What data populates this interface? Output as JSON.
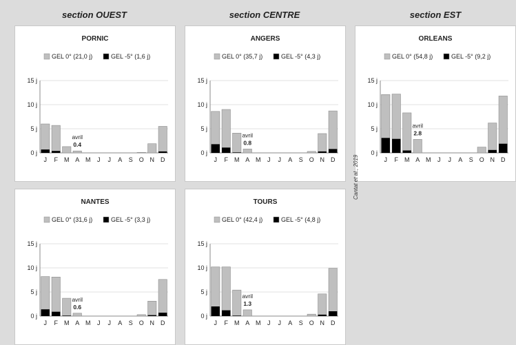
{
  "sections": [
    {
      "label": "section OUEST"
    },
    {
      "label": "section CENTRE"
    },
    {
      "label": "section EST"
    }
  ],
  "credit": "Cantat et al., 2019",
  "colors": {
    "gel0": "#bfbfbf",
    "gel5": "#000000",
    "border": "#8c8c8c"
  },
  "chart_data": [
    {
      "type": "bar",
      "stacked": true,
      "title": "PORNIC",
      "categories": [
        "J",
        "F",
        "M",
        "A",
        "M",
        "J",
        "J",
        "A",
        "S",
        "O",
        "N",
        "D"
      ],
      "yticks": [
        "0 j",
        "5 j",
        "10 j",
        "15 j"
      ],
      "ylim": [
        0,
        15
      ],
      "series": [
        {
          "name": "GEL 0° (21,0 j)",
          "values": [
            6.0,
            5.7,
            1.3,
            0.4,
            0,
            0,
            0,
            0,
            0,
            0.1,
            1.9,
            5.5
          ]
        },
        {
          "name": "GEL -5° (1,6 j)",
          "values": [
            0.7,
            0.4,
            0,
            0,
            0,
            0,
            0,
            0,
            0,
            0,
            0,
            0.3
          ]
        }
      ],
      "annotation": {
        "label": "avril",
        "value": "0.4"
      },
      "grid": true,
      "legend": "top"
    },
    {
      "type": "bar",
      "stacked": true,
      "title": "ANGERS",
      "categories": [
        "J",
        "F",
        "M",
        "A",
        "M",
        "J",
        "J",
        "A",
        "S",
        "O",
        "N",
        "D"
      ],
      "yticks": [
        "0 j",
        "5 j",
        "10 j",
        "15 j"
      ],
      "ylim": [
        0,
        15
      ],
      "series": [
        {
          "name": "GEL 0° (35,7 j)",
          "values": [
            8.6,
            9.0,
            4.1,
            0.8,
            0,
            0,
            0,
            0,
            0,
            0.3,
            4.0,
            8.7
          ]
        },
        {
          "name": "GEL -5° (4,3 j)",
          "values": [
            1.8,
            1.1,
            0.1,
            0,
            0,
            0,
            0,
            0,
            0,
            0,
            0.3,
            0.8
          ]
        }
      ],
      "annotation": {
        "label": "avril",
        "value": "0.8"
      },
      "grid": true,
      "legend": "top"
    },
    {
      "type": "bar",
      "stacked": true,
      "title": "ORLEANS",
      "categories": [
        "J",
        "F",
        "M",
        "A",
        "M",
        "J",
        "J",
        "A",
        "S",
        "O",
        "N",
        "D"
      ],
      "yticks": [
        "0 j",
        "5 j",
        "10 j",
        "15 j"
      ],
      "ylim": [
        0,
        15
      ],
      "series": [
        {
          "name": "GEL 0° (54,8 j)",
          "values": [
            12.1,
            12.2,
            8.3,
            2.8,
            0,
            0,
            0,
            0,
            0,
            1.2,
            6.2,
            11.8
          ]
        },
        {
          "name": "GEL -5° (9,2 j)",
          "values": [
            3.1,
            2.9,
            0.5,
            0,
            0,
            0,
            0,
            0,
            0,
            0,
            0.6,
            1.9
          ]
        }
      ],
      "annotation": {
        "label": "avril",
        "value": "2.8"
      },
      "grid": true,
      "legend": "top"
    },
    {
      "type": "bar",
      "stacked": true,
      "title": "NANTES",
      "categories": [
        "J",
        "F",
        "M",
        "A",
        "M",
        "J",
        "J",
        "A",
        "S",
        "O",
        "N",
        "D"
      ],
      "yticks": [
        "0 j",
        "5 j",
        "10 j",
        "15 j"
      ],
      "ylim": [
        0,
        15
      ],
      "series": [
        {
          "name": "GEL 0° (31,6 j)",
          "values": [
            8.2,
            8.1,
            3.7,
            0.6,
            0,
            0,
            0,
            0,
            0,
            0.3,
            3.1,
            7.6
          ]
        },
        {
          "name": "GEL -5° (3,3 j)",
          "values": [
            1.4,
            0.9,
            0.1,
            0,
            0,
            0,
            0,
            0,
            0,
            0,
            0.2,
            0.7
          ]
        }
      ],
      "annotation": {
        "label": "avril",
        "value": "0.6"
      },
      "grid": true,
      "legend": "top"
    },
    {
      "type": "bar",
      "stacked": true,
      "title": "TOURS",
      "categories": [
        "J",
        "F",
        "M",
        "A",
        "M",
        "J",
        "J",
        "A",
        "S",
        "O",
        "N",
        "D"
      ],
      "yticks": [
        "0 j",
        "5 j",
        "10 j",
        "15 j"
      ],
      "ylim": [
        0,
        15
      ],
      "series": [
        {
          "name": "GEL 0° (42,4 j)",
          "values": [
            10.2,
            10.2,
            5.4,
            1.3,
            0,
            0,
            0,
            0,
            0,
            0.4,
            4.6,
            9.9
          ]
        },
        {
          "name": "GEL -5° (4,8 j)",
          "values": [
            2.0,
            1.2,
            0.1,
            0,
            0,
            0,
            0,
            0,
            0,
            0,
            0.3,
            1.0
          ]
        }
      ],
      "annotation": {
        "label": "avril",
        "value": "1.3"
      },
      "grid": true,
      "legend": "top"
    }
  ]
}
